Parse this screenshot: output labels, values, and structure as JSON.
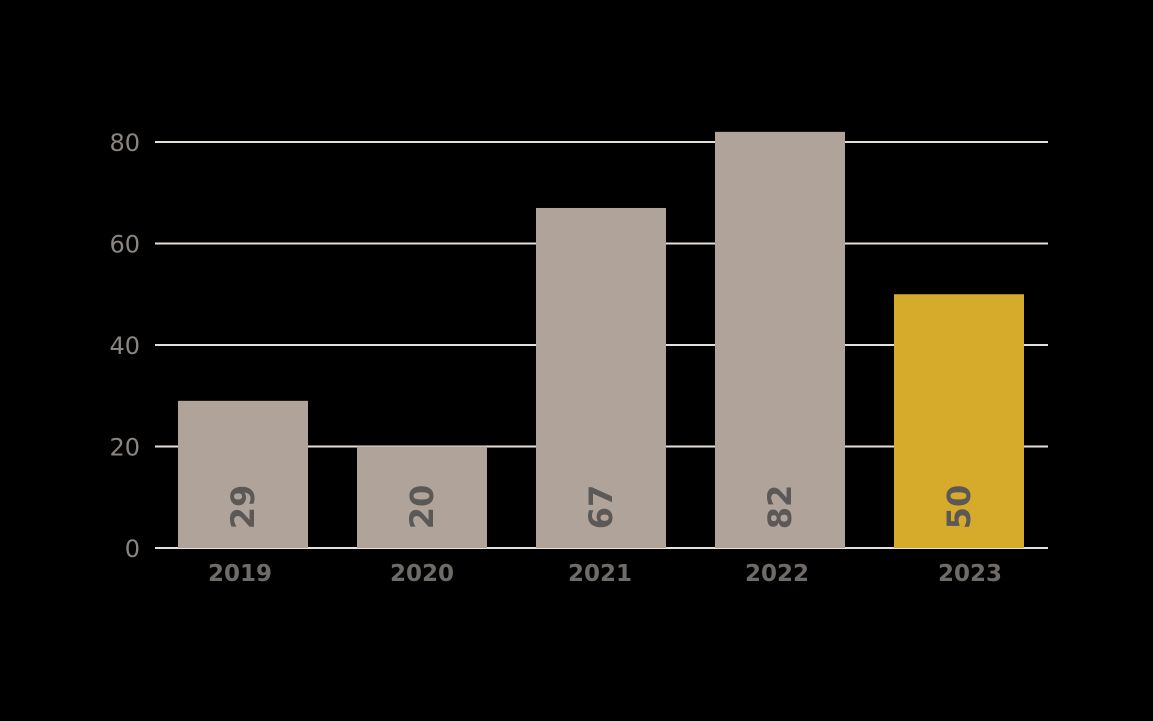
{
  "chart_data": {
    "type": "bar",
    "categories": [
      "2019",
      "2020",
      "2021",
      "2022",
      "2023"
    ],
    "values": [
      29,
      20,
      67,
      82,
      50
    ],
    "data_labels": [
      "29",
      "20",
      "67",
      "82",
      "50"
    ],
    "y_ticks": [
      0,
      20,
      40,
      60,
      80
    ],
    "ylim": [
      0,
      80
    ],
    "grid": true,
    "title": "",
    "xlabel": "",
    "ylabel": ""
  },
  "colors": {
    "background": "#000000",
    "bar": "#b0a49a",
    "highlight_bar": "#d6ab2c",
    "highlight_category": "2023",
    "gridline": "#e6e0dc",
    "tick_label": "#8b8580",
    "category_label": "#6f6b68",
    "data_label": "#5c5855"
  }
}
